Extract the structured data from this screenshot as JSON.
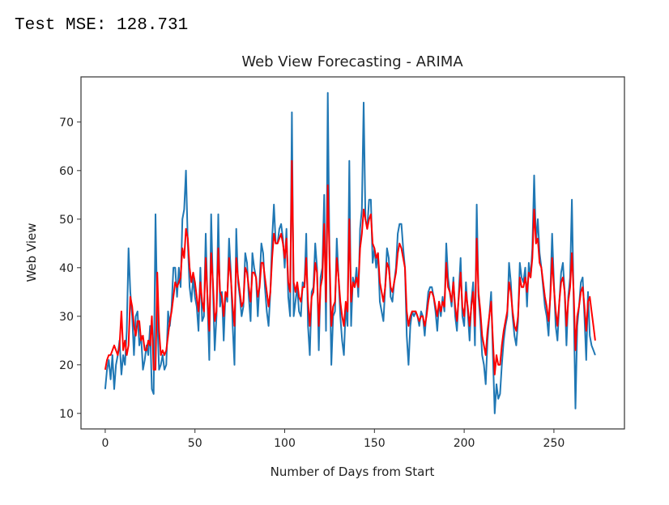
{
  "output_text": "Test MSE: 128.731",
  "chart_data": {
    "type": "line",
    "title": "Web View Forecasting - ARIMA",
    "xlabel": "Number of Days from Start",
    "ylabel": "Web View",
    "xlim": [
      -13.5,
      289.3
    ],
    "ylim": [
      6.8,
      79.3
    ],
    "xticks": [
      0,
      50,
      100,
      150,
      200,
      250
    ],
    "yticks": [
      10,
      20,
      30,
      40,
      50,
      60,
      70
    ],
    "grid": false,
    "legend": "none",
    "series": [
      {
        "color": "#1f77b4",
        "values": [
          15,
          19,
          21,
          17,
          22,
          15,
          20,
          22,
          25,
          18,
          22,
          20,
          27,
          44,
          35,
          30,
          22,
          30,
          31,
          24,
          26,
          19,
          21,
          24,
          22,
          28,
          15,
          14,
          51,
          30,
          19,
          20,
          22,
          19,
          20,
          31,
          28,
          32,
          40,
          40,
          34,
          40,
          36,
          50,
          52,
          60,
          45,
          36,
          33,
          38,
          34,
          32,
          27,
          40,
          29,
          30,
          47,
          33,
          21,
          51,
          36,
          23,
          30,
          51,
          32,
          35,
          25,
          35,
          33,
          46,
          39,
          28,
          20,
          48,
          37,
          34,
          30,
          32,
          43,
          41,
          34,
          29,
          43,
          40,
          38,
          30,
          37,
          45,
          43,
          36,
          31,
          28,
          35,
          46,
          53,
          45,
          45,
          48,
          49,
          46,
          40,
          48,
          34,
          30,
          72,
          30,
          33,
          36,
          31,
          30,
          37,
          36,
          47,
          28,
          22,
          35,
          36,
          45,
          40,
          23,
          38,
          40,
          55,
          27,
          76,
          41,
          20,
          30,
          31,
          46,
          38,
          30,
          25,
          22,
          32,
          28,
          62,
          28,
          38,
          36,
          40,
          34,
          48,
          52,
          74,
          50,
          48,
          54,
          54,
          41,
          44,
          40,
          43,
          33,
          31,
          29,
          36,
          44,
          42,
          34,
          33,
          37,
          40,
          47,
          49,
          49,
          44,
          40,
          26,
          20,
          28,
          31,
          30,
          31,
          30,
          28,
          31,
          30,
          26,
          31,
          35,
          36,
          36,
          34,
          31,
          27,
          33,
          30,
          34,
          31,
          45,
          38,
          35,
          32,
          38,
          30,
          27,
          35,
          42,
          30,
          28,
          37,
          31,
          25,
          33,
          37,
          24,
          53,
          34,
          29,
          22,
          20,
          16,
          25,
          30,
          35,
          22,
          10,
          16,
          13,
          14,
          20,
          25,
          28,
          30,
          41,
          37,
          30,
          26,
          24,
          29,
          41,
          38,
          37,
          40,
          32,
          41,
          38,
          44,
          59,
          45,
          50,
          43,
          40,
          36,
          32,
          30,
          26,
          35,
          47,
          37,
          28,
          25,
          33,
          39,
          41,
          35,
          24,
          34,
          38,
          54,
          33,
          11,
          28,
          32,
          37,
          38,
          30,
          21,
          35,
          26,
          24,
          23,
          22
        ]
      },
      {
        "color": "#ff0000",
        "values": [
          19,
          21,
          22,
          22,
          23,
          24,
          23,
          22,
          24,
          31,
          23,
          25,
          22,
          24,
          34,
          32,
          28,
          26,
          29,
          29,
          25,
          26,
          23,
          23,
          25,
          24,
          30,
          19,
          19,
          39,
          27,
          22,
          23,
          22,
          23,
          26,
          29,
          31,
          34,
          37,
          36,
          37,
          38,
          44,
          42,
          48,
          46,
          40,
          37,
          39,
          37,
          34,
          31,
          37,
          33,
          31,
          42,
          34,
          27,
          43,
          37,
          29,
          31,
          44,
          35,
          34,
          30,
          35,
          34,
          42,
          38,
          32,
          28,
          42,
          38,
          35,
          32,
          33,
          40,
          39,
          36,
          33,
          39,
          39,
          38,
          34,
          36,
          41,
          41,
          38,
          35,
          32,
          35,
          42,
          47,
          45,
          45,
          46,
          47,
          45,
          42,
          46,
          37,
          35,
          62,
          37,
          35,
          37,
          34,
          33,
          36,
          36,
          42,
          33,
          28,
          34,
          35,
          41,
          39,
          28,
          36,
          38,
          49,
          33,
          57,
          42,
          28,
          32,
          33,
          42,
          38,
          33,
          30,
          28,
          33,
          31,
          50,
          33,
          37,
          36,
          38,
          36,
          44,
          47,
          52,
          50,
          48,
          50,
          51,
          45,
          44,
          42,
          43,
          37,
          35,
          33,
          36,
          41,
          40,
          36,
          35,
          37,
          39,
          43,
          45,
          44,
          42,
          40,
          31,
          28,
          30,
          31,
          31,
          31,
          30,
          29,
          30,
          30,
          28,
          30,
          33,
          35,
          35,
          34,
          32,
          30,
          33,
          31,
          33,
          32,
          41,
          36,
          35,
          33,
          37,
          32,
          29,
          34,
          39,
          32,
          30,
          35,
          32,
          28,
          32,
          35,
          28,
          46,
          35,
          31,
          26,
          24,
          22,
          27,
          30,
          33,
          25,
          18,
          22,
          20,
          20,
          24,
          27,
          29,
          31,
          37,
          35,
          31,
          28,
          27,
          30,
          38,
          36,
          36,
          38,
          35,
          39,
          38,
          42,
          52,
          45,
          46,
          41,
          40,
          37,
          34,
          32,
          29,
          34,
          42,
          36,
          31,
          28,
          33,
          37,
          38,
          35,
          28,
          33,
          36,
          43,
          35,
          23,
          30,
          32,
          35,
          36,
          32,
          27,
          33,
          34,
          31,
          28,
          25
        ]
      }
    ]
  }
}
